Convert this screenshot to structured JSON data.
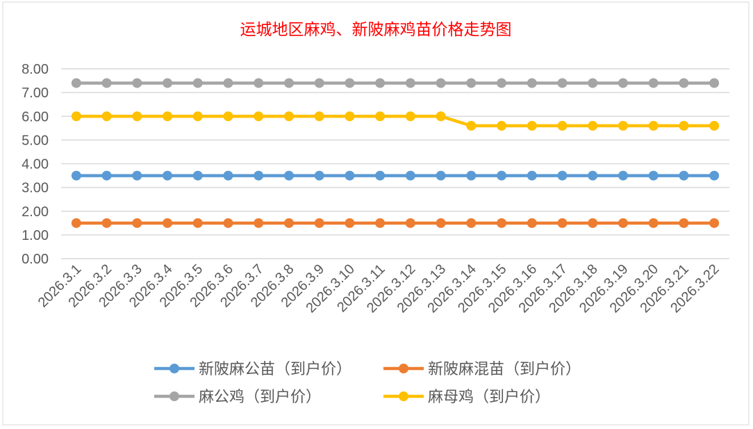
{
  "chart_data": {
    "type": "line",
    "title": "运城地区麻鸡、新陂麻鸡苗价格走势图",
    "xlabel": "",
    "ylabel": "",
    "ylim": [
      0,
      8
    ],
    "yticks": [
      "0.00",
      "1.00",
      "2.00",
      "3.00",
      "4.00",
      "5.00",
      "6.00",
      "7.00",
      "8.00"
    ],
    "grid": true,
    "legend_position": "bottom",
    "categories": [
      "2026.3.1",
      "2026.3.2",
      "2026.3.3",
      "2026.3.4",
      "2026.3.5",
      "2026.3.6",
      "2026.3.7",
      "2026.3.8",
      "2026.3.9",
      "2026.3.10",
      "2026.3.11",
      "2026.3.12",
      "2026.3.13",
      "2026.3.14",
      "2026.3.15",
      "2026.3.16",
      "2026.3.17",
      "2026.3.18",
      "2026.3.19",
      "2026.3.20",
      "2026.3.21",
      "2026.3.22"
    ],
    "series": [
      {
        "name": "新陂麻公苗（到户价）",
        "color": "#5b9bd5",
        "values": [
          3.5,
          3.5,
          3.5,
          3.5,
          3.5,
          3.5,
          3.5,
          3.5,
          3.5,
          3.5,
          3.5,
          3.5,
          3.5,
          3.5,
          3.5,
          3.5,
          3.5,
          3.5,
          3.5,
          3.5,
          3.5,
          3.5
        ]
      },
      {
        "name": "新陂麻混苗（到户价）",
        "color": "#ed7d31",
        "values": [
          1.5,
          1.5,
          1.5,
          1.5,
          1.5,
          1.5,
          1.5,
          1.5,
          1.5,
          1.5,
          1.5,
          1.5,
          1.5,
          1.5,
          1.5,
          1.5,
          1.5,
          1.5,
          1.5,
          1.5,
          1.5,
          1.5
        ]
      },
      {
        "name": "麻公鸡（到户价）",
        "color": "#a5a5a5",
        "values": [
          7.4,
          7.4,
          7.4,
          7.4,
          7.4,
          7.4,
          7.4,
          7.4,
          7.4,
          7.4,
          7.4,
          7.4,
          7.4,
          7.4,
          7.4,
          7.4,
          7.4,
          7.4,
          7.4,
          7.4,
          7.4,
          7.4
        ]
      },
      {
        "name": "麻母鸡（到户价）",
        "color": "#ffc000",
        "values": [
          6.0,
          6.0,
          6.0,
          6.0,
          6.0,
          6.0,
          6.0,
          6.0,
          6.0,
          6.0,
          6.0,
          6.0,
          6.0,
          5.6,
          5.6,
          5.6,
          5.6,
          5.6,
          5.6,
          5.6,
          5.6,
          5.6
        ]
      }
    ]
  }
}
